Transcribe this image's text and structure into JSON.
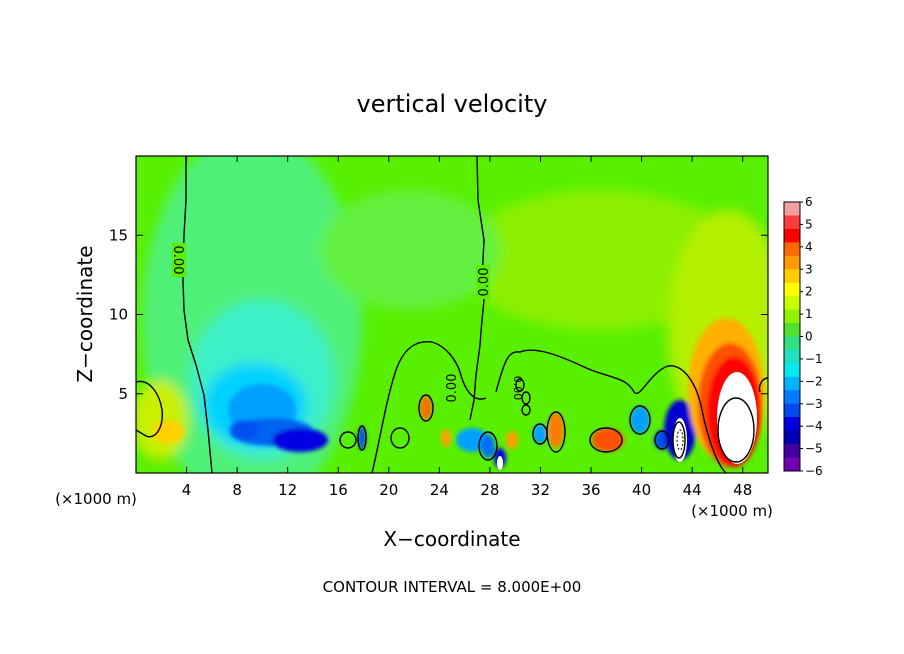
{
  "chart_data": {
    "type": "heatmap",
    "title": "vertical velocity",
    "xlabel": "X−coordinate",
    "ylabel": "Z−coordinate",
    "x_unit_left": "(×1000 m)",
    "x_unit_right": "(×1000 m)",
    "footer": "CONTOUR INTERVAL = 8.000E+00",
    "xlim": [
      0,
      50
    ],
    "ylim": [
      0,
      20
    ],
    "x_ticks": [
      4,
      8,
      12,
      16,
      20,
      24,
      28,
      32,
      36,
      40,
      44,
      48
    ],
    "y_ticks": [
      5,
      10,
      15
    ],
    "x_tick_labels": [
      "4",
      "8",
      "12",
      "16",
      "20",
      "24",
      "28",
      "32",
      "36",
      "40",
      "44",
      "48"
    ],
    "y_tick_labels": [
      "5",
      "10",
      "15"
    ],
    "colorbar": {
      "min": -6,
      "max": 6,
      "labels": [
        "6",
        "5",
        "4",
        "3",
        "2",
        "1",
        "0",
        "−1",
        "−2",
        "−3",
        "−4",
        "−5",
        "−6"
      ],
      "colors": [
        "#f4a0a0",
        "#ff3c3c",
        "#ff0000",
        "#ff6a00",
        "#ff9a00",
        "#ffcc00",
        "#ffff00",
        "#c8ff00",
        "#90f000",
        "#50e030",
        "#30e080",
        "#20e0c0",
        "#00e8f0",
        "#00b4ff",
        "#0078ff",
        "#0048f0",
        "#0000e0",
        "#0000b0",
        "#4000a0",
        "#7000b0"
      ]
    },
    "contour_labels": [
      "0.00",
      "0.00",
      "0.00",
      "0.00"
    ],
    "features": [
      {
        "kind": "updraft",
        "x": 47.5,
        "z": 3.5,
        "peak": 9
      },
      {
        "kind": "updraft",
        "x": 23,
        "z": 4,
        "peak": 3.5
      },
      {
        "kind": "updraft",
        "x": 37,
        "z": 2,
        "peak": 3.5
      },
      {
        "kind": "updraft",
        "x": 33,
        "z": 2.5,
        "peak": 3
      },
      {
        "kind": "updraft",
        "x": 2.5,
        "z": 3,
        "peak": 1.5
      },
      {
        "kind": "downdraft",
        "x": 13,
        "z": 2,
        "peak": -5
      },
      {
        "kind": "downdraft",
        "x": 9.5,
        "z": 4,
        "peak": -3
      },
      {
        "kind": "downdraft",
        "x": 42.7,
        "z": 2,
        "peak": -9
      },
      {
        "kind": "downdraft",
        "x": 29.5,
        "z": 1,
        "peak": -6
      },
      {
        "kind": "downdraft",
        "x": 26.5,
        "z": 2,
        "peak": -4
      }
    ]
  }
}
